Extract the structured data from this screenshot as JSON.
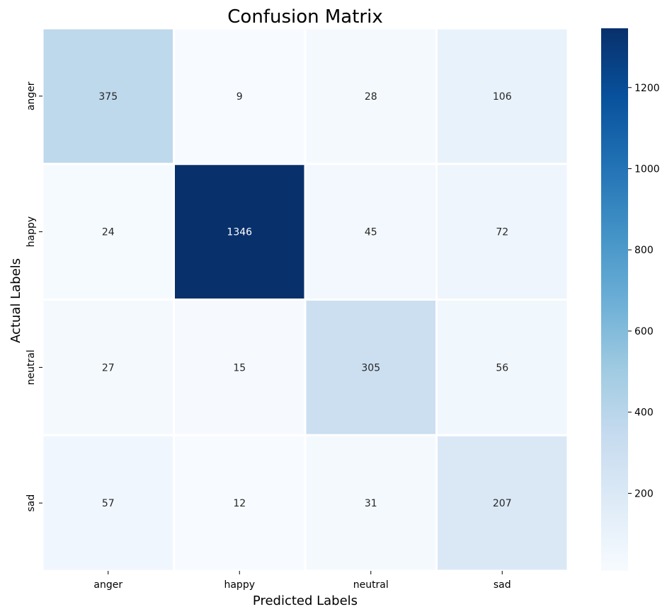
{
  "chart_data": {
    "type": "heatmap",
    "title": "Confusion Matrix",
    "xlabel": "Predicted Labels",
    "ylabel": "Actual Labels",
    "x_categories": [
      "anger",
      "happy",
      "neutral",
      "sad"
    ],
    "y_categories": [
      "anger",
      "happy",
      "neutral",
      "sad"
    ],
    "values": [
      [
        375,
        9,
        28,
        106
      ],
      [
        24,
        1346,
        45,
        72
      ],
      [
        27,
        15,
        305,
        56
      ],
      [
        57,
        12,
        31,
        207
      ]
    ],
    "colorbar": {
      "range": [
        9,
        1346
      ],
      "ticks": [
        200,
        400,
        600,
        800,
        1000,
        1200
      ],
      "colormap": "Blues"
    }
  }
}
